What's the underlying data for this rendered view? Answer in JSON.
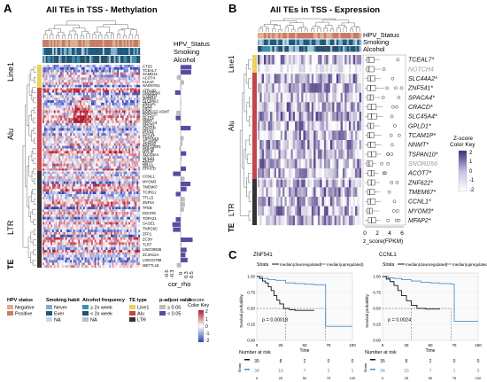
{
  "panelA": {
    "letter": "A",
    "title": "All TEs in TSS - Methylation",
    "annotation_labels": [
      "HPV_Status",
      "Smoking",
      "Alcohol"
    ],
    "te_groups": [
      "Line1",
      "Alu",
      "LTR"
    ],
    "te_axis_label": "TE",
    "gene_labels_top": [
      "CTS3",
      "TCEAL7",
      "SAMD14",
      "ACOT4",
      "KLK10",
      "NADSYN1"
    ],
    "gene_labels_alu": [
      "ATRAID",
      "SNORD56",
      "CYB5R3",
      "MIR934",
      "SLC44A2",
      "ZNF541",
      "FGD2",
      "PIFO",
      "BORCS7-ASMT",
      "BORCS7",
      "GLTP2",
      "NNMT",
      "SPACA4",
      "GPLD1",
      "CRACD",
      "ORAI1",
      "FASTK",
      "PCAST",
      "TSPAN10",
      "TCAM1P",
      "ZNF622",
      "RNF128P1",
      "RNF20",
      "MYLIP",
      "SLC45A4",
      "GPLD1",
      "ZNF79",
      "DNTT",
      "ORAI1",
      "CRACD"
    ],
    "gene_labels_ltr": [
      "CCNL1",
      "MYOM3",
      "TMEM67",
      "TCIRG1",
      "TTLL5",
      "ZNF44",
      "TFEB",
      "DGCR8",
      "TOPAZ1",
      "SAGE1",
      "TNRC6C",
      "ZFP1",
      "ZC3H",
      "TLR7",
      "LINC00636",
      "ZC3H12A",
      "LINC01788",
      "METTL16"
    ],
    "bar_axis_label": "cor_rho",
    "bar_ticks": [
      "-0.5",
      "-0.3",
      "0",
      "0.3",
      "0.5"
    ],
    "legend": {
      "hpv": {
        "title": "HPV status",
        "items": [
          "Negative",
          "Positive"
        ]
      },
      "smoking": {
        "title": "Smoking habit",
        "items": [
          "Never",
          "Ever",
          "NA"
        ]
      },
      "alcohol": {
        "title": "Alcohol frequency",
        "items": [
          "≥ 2x week",
          "< 2x week",
          "NA"
        ]
      },
      "te": {
        "title": "TE type",
        "items": [
          "Line1",
          "Alu",
          "LTR"
        ]
      },
      "padj": {
        "title": "p-adjust value",
        "items": [
          "≥ 0.05",
          "< 0.05"
        ]
      },
      "zscore": {
        "title": "Z-score\nColor Key",
        "ticks": [
          "2",
          "1",
          "0",
          "-1",
          "-2"
        ]
      }
    }
  },
  "panelB": {
    "letter": "B",
    "title": "All TEs in TSS - Expression",
    "annotation_labels": [
      "HPV_Status",
      "Smoking",
      "Alcohol"
    ],
    "te_groups": [
      "Line1",
      "Alu",
      "LTR"
    ],
    "te_axis_label": "TE",
    "genes": [
      "TCEAL7*",
      "NOTCH4",
      "SLC44A2*",
      "ZNF541*",
      "SPACA4*",
      "CRACD*",
      "SLC45A4*",
      "GPLD1*",
      "TCAM1P*",
      "NNMT*",
      "TSPAN10*",
      "SNORD56",
      "ACOT7*",
      "ZNF622*",
      "TMEM67*",
      "CCNL1*",
      "MYOM3*",
      "MFAP2*"
    ],
    "box_axis_ticks": [
      "0",
      "2",
      "4",
      "6"
    ],
    "box_axis_label": "z_score(FPKM)",
    "zscore_key": {
      "title": "Z-score\nColor Key",
      "ticks": [
        "2",
        "1",
        "0",
        "-1",
        "-2"
      ]
    }
  },
  "panelC": {
    "letter": "C",
    "plots": [
      {
        "gene": "ZNF541",
        "strata_label": "Strata",
        "legend_items": [
          "median(downregulated)",
          "median(upregulated)"
        ],
        "p_value": "p = 0.00018",
        "y_label": "Survival probability",
        "x_label": "Time",
        "x_ticks": [
          "0",
          "25",
          "50",
          "75",
          "100"
        ],
        "y_ticks": [
          "1.00",
          "0.75",
          "0.50",
          "0.25",
          "0.00"
        ],
        "risk_title": "Number at risk",
        "risk_rows": [
          [
            "35",
            "8",
            "2",
            "0",
            "0"
          ],
          [
            "34",
            "15",
            "7",
            "2",
            "1"
          ]
        ],
        "risk_side_label": "Strata",
        "curve_down": [
          [
            0,
            1.0
          ],
          [
            3,
            0.97
          ],
          [
            6,
            0.93
          ],
          [
            9,
            0.9
          ],
          [
            12,
            0.84
          ],
          [
            15,
            0.78
          ],
          [
            18,
            0.7
          ],
          [
            21,
            0.63
          ],
          [
            24,
            0.57
          ],
          [
            28,
            0.5
          ],
          [
            34,
            0.48
          ],
          [
            40,
            0.47
          ],
          [
            46,
            0.47
          ],
          [
            60,
            0.47
          ]
        ],
        "curve_up": [
          [
            0,
            1.0
          ],
          [
            6,
            0.97
          ],
          [
            12,
            0.95
          ],
          [
            20,
            0.94
          ],
          [
            30,
            0.9
          ],
          [
            40,
            0.89
          ],
          [
            50,
            0.88
          ],
          [
            60,
            0.87
          ],
          [
            70,
            0.87
          ],
          [
            72,
            0.22
          ],
          [
            100,
            0.22
          ]
        ]
      },
      {
        "gene": "CCNL1",
        "strata_label": "Strata",
        "legend_items": [
          "median(downregulated)",
          "median(upregulated)"
        ],
        "p_value": "p = 0.0024",
        "y_label": "Survival probability",
        "x_label": "Time",
        "x_ticks": [
          "0",
          "25",
          "50",
          "75",
          "100"
        ],
        "y_ticks": [
          "1.00",
          "0.75",
          "0.50",
          "0.25",
          "0.00"
        ],
        "risk_title": "Number at risk",
        "risk_rows": [
          [
            "35",
            "8",
            "2",
            "0",
            "0"
          ],
          [
            "34",
            "15",
            "7",
            "1",
            "0"
          ]
        ],
        "risk_side_label": "Strata",
        "curve_down": [
          [
            0,
            1.0
          ],
          [
            4,
            0.96
          ],
          [
            8,
            0.92
          ],
          [
            12,
            0.86
          ],
          [
            16,
            0.78
          ],
          [
            20,
            0.7
          ],
          [
            25,
            0.62
          ],
          [
            30,
            0.55
          ],
          [
            36,
            0.5
          ],
          [
            45,
            0.49
          ],
          [
            60,
            0.49
          ]
        ],
        "curve_up": [
          [
            0,
            1.0
          ],
          [
            6,
            0.98
          ],
          [
            12,
            0.97
          ],
          [
            20,
            0.95
          ],
          [
            30,
            0.93
          ],
          [
            40,
            0.91
          ],
          [
            50,
            0.9
          ],
          [
            60,
            0.89
          ],
          [
            72,
            0.88
          ],
          [
            75,
            0.3
          ],
          [
            100,
            0.3
          ]
        ]
      }
    ]
  },
  "colors": {
    "hpv_negative": "#dbb08e",
    "hpv_positive": "#c97b6a",
    "smoke_never": "#7fb0d4",
    "smoke_ever": "#1f5a7d",
    "smoke_na": "#c9d8e4",
    "alc_ge": "#3b8fb3",
    "alc_lt": "#2a4f66",
    "alc_na": "#a9c4d3",
    "te_line1": "#e8d35a",
    "te_alu": "#c2454b",
    "te_ltr": "#333333",
    "heat_high": "#b2182b",
    "heat_low": "#2b3fb8",
    "expr_high": "#3f2a7a",
    "curve_down": "#111111",
    "curve_up": "#4a90c8",
    "bar_sig": "#5a4aa3",
    "bar_ns": "#bdbdbd"
  }
}
